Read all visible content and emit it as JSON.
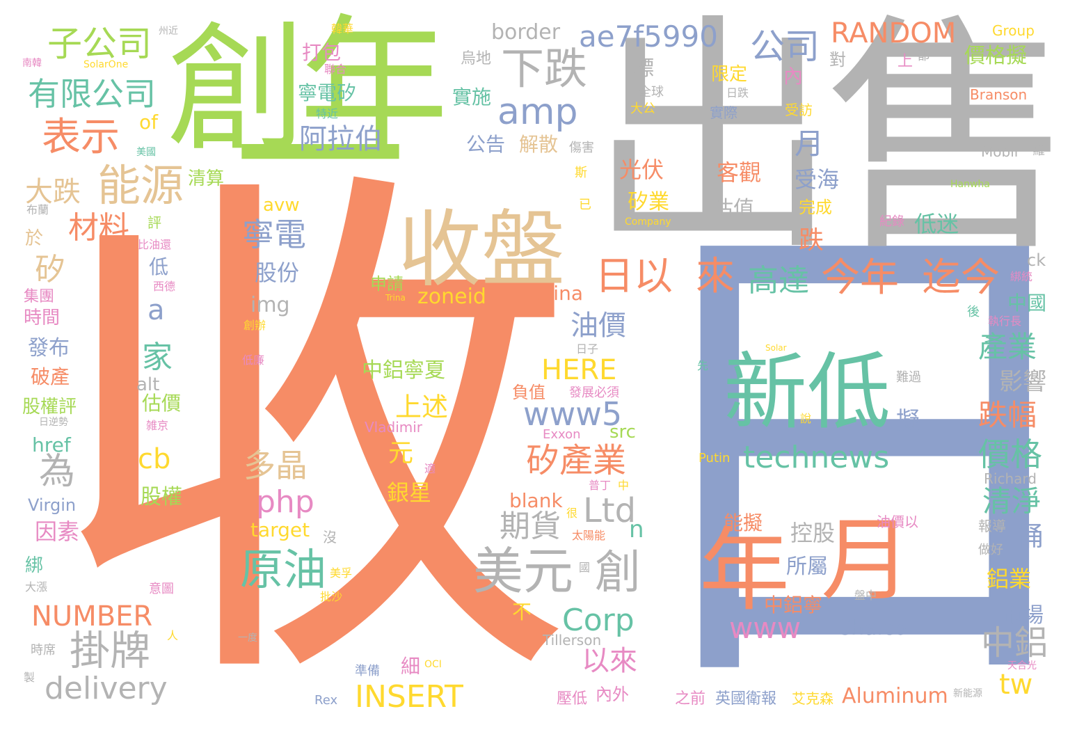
{
  "palette": {
    "orange": "#f68c66",
    "green": "#a6d955",
    "gray": "#b3b3b3",
    "blue": "#8da0cb",
    "teal": "#66c2a5",
    "tan": "#e5c494",
    "pink": "#e78ac3",
    "yellow": "#ffd92f"
  },
  "words": [
    {
      "text": "收",
      "color": "orange"
    },
    {
      "text": "日",
      "color": "blue"
    },
    {
      "text": "出售",
      "color": "gray"
    },
    {
      "text": "創",
      "color": "green"
    },
    {
      "text": "年",
      "color": "green"
    },
    {
      "text": "一",
      "color": "green"
    },
    {
      "text": "收盤",
      "color": "tan"
    },
    {
      "text": "新低",
      "color": "teal"
    },
    {
      "text": "年",
      "color": "orange"
    },
    {
      "text": "月",
      "color": "orange"
    },
    {
      "text": "下跌",
      "color": "gray"
    },
    {
      "text": "ae7f5990",
      "color": "blue"
    },
    {
      "text": "公司",
      "color": "blue"
    },
    {
      "text": "RANDOM",
      "color": "orange"
    },
    {
      "text": "子公司",
      "color": "green"
    },
    {
      "text": "有限公司",
      "color": "teal"
    },
    {
      "text": "表示",
      "color": "orange"
    },
    {
      "text": "amp",
      "color": "blue"
    },
    {
      "text": "能源",
      "color": "tan"
    },
    {
      "text": "阿拉伯",
      "color": "blue"
    },
    {
      "text": "日以",
      "color": "orange"
    },
    {
      "text": "來",
      "color": "orange"
    },
    {
      "text": "高達",
      "color": "teal"
    },
    {
      "text": "今年",
      "color": "orange"
    },
    {
      "text": "迄今",
      "color": "orange"
    },
    {
      "text": "原油",
      "color": "teal"
    },
    {
      "text": "美元",
      "color": "gray"
    },
    {
      "text": "創",
      "color": "gray"
    },
    {
      "text": "technews",
      "color": "teal"
    },
    {
      "text": "掛牌",
      "color": "gray"
    },
    {
      "text": "NUMBER",
      "color": "orange"
    },
    {
      "text": "delivery",
      "color": "gray"
    },
    {
      "text": "INSERT",
      "color": "yellow"
    },
    {
      "text": "Corp",
      "color": "teal"
    },
    {
      "text": "www",
      "color": "pink"
    },
    {
      "text": "Chalco",
      "color": "blue"
    },
    {
      "text": "Aluminum",
      "color": "orange"
    },
    {
      "text": "www5",
      "color": "blue"
    },
    {
      "text": "HERE",
      "color": "yellow"
    },
    {
      "text": "php",
      "color": "pink"
    },
    {
      "text": "Ltd",
      "color": "gray"
    },
    {
      "text": "寧電",
      "color": "blue"
    },
    {
      "text": "矽產業",
      "color": "orange"
    },
    {
      "text": "多晶",
      "color": "tan"
    },
    {
      "text": "上述",
      "color": "yellow"
    },
    {
      "text": "中鋁寧夏",
      "color": "green"
    },
    {
      "text": "zoneid",
      "color": "yellow"
    },
    {
      "text": "China",
      "color": "orange"
    },
    {
      "text": "以來",
      "color": "pink"
    },
    {
      "text": "期貨",
      "color": "gray"
    },
    {
      "text": "中鋁",
      "color": "gray"
    },
    {
      "text": "價格",
      "color": "teal"
    },
    {
      "text": "跌幅",
      "color": "orange"
    },
    {
      "text": "產業",
      "color": "teal"
    },
    {
      "text": "清淨",
      "color": "teal"
    },
    {
      "text": "tw",
      "color": "yellow"
    },
    {
      "text": "油價",
      "color": "blue"
    },
    {
      "text": "家",
      "color": "teal"
    },
    {
      "text": "為",
      "color": "gray"
    },
    {
      "text": "cb",
      "color": "yellow"
    },
    {
      "text": "a",
      "color": "blue"
    },
    {
      "text": "矽",
      "color": "tan"
    },
    {
      "text": "大跌",
      "color": "tan"
    },
    {
      "text": "材料",
      "color": "orange"
    },
    {
      "text": "border",
      "color": "gray"
    },
    {
      "text": "月",
      "color": "blue"
    },
    {
      "text": "光伏",
      "color": "orange"
    },
    {
      "text": "客觀",
      "color": "orange"
    },
    {
      "text": "受海",
      "color": "blue"
    },
    {
      "text": "矽業",
      "color": "yellow"
    },
    {
      "text": "估值",
      "color": "gray"
    },
    {
      "text": "跌",
      "color": "orange"
    },
    {
      "text": "低迷",
      "color": "teal"
    },
    {
      "text": "價格擬",
      "color": "green"
    },
    {
      "text": "股份",
      "color": "blue"
    },
    {
      "text": "img",
      "color": "gray"
    },
    {
      "text": "元",
      "color": "yellow"
    },
    {
      "text": "銀星",
      "color": "yellow"
    },
    {
      "text": "blank",
      "color": "orange"
    },
    {
      "text": "target",
      "color": "yellow"
    },
    {
      "text": "src",
      "color": "green"
    },
    {
      "text": "控股",
      "color": "gray"
    },
    {
      "text": "所屬",
      "color": "blue"
    },
    {
      "text": "能擬",
      "color": "orange"
    },
    {
      "text": "中鋁寧",
      "color": "orange"
    },
    {
      "text": "桶",
      "color": "blue"
    },
    {
      "text": "鋁業",
      "color": "yellow"
    },
    {
      "text": "市場",
      "color": "blue"
    },
    {
      "text": "影響",
      "color": "gray"
    },
    {
      "text": "擬",
      "color": "blue"
    },
    {
      "text": "中國",
      "color": "teal"
    },
    {
      "text": "限定",
      "color": "yellow"
    },
    {
      "text": "內",
      "color": "pink"
    },
    {
      "text": "打包",
      "color": "pink"
    },
    {
      "text": "寧電矽",
      "color": "teal"
    },
    {
      "text": "實施",
      "color": "teal"
    },
    {
      "text": "公告",
      "color": "blue"
    },
    {
      "text": "解散",
      "color": "tan"
    },
    {
      "text": "of",
      "color": "yellow"
    },
    {
      "text": "avw",
      "color": "yellow"
    },
    {
      "text": "n",
      "color": "teal"
    },
    {
      "text": "申請",
      "color": "green"
    },
    {
      "text": "alt",
      "color": "gray"
    },
    {
      "text": "href",
      "color": "teal"
    },
    {
      "text": "估價",
      "color": "green"
    },
    {
      "text": "股權",
      "color": "green"
    },
    {
      "text": "Virgin",
      "color": "blue"
    },
    {
      "text": "因素",
      "color": "pink"
    },
    {
      "text": "發布",
      "color": "blue"
    },
    {
      "text": "破產",
      "color": "orange"
    },
    {
      "text": "股權評",
      "color": "green"
    },
    {
      "text": "時間",
      "color": "pink"
    },
    {
      "text": "集團",
      "color": "pink"
    },
    {
      "text": "低",
      "color": "blue"
    },
    {
      "text": "於",
      "color": "tan"
    },
    {
      "text": "清算",
      "color": "green"
    },
    {
      "text": "Group",
      "color": "yellow"
    },
    {
      "text": "Branson",
      "color": "orange"
    },
    {
      "text": "Mobil",
      "color": "gray"
    },
    {
      "text": "Richard",
      "color": "gray"
    },
    {
      "text": "ck",
      "color": "gray"
    },
    {
      "text": "Putin",
      "color": "yellow"
    },
    {
      "text": "Vladimir",
      "color": "pink"
    },
    {
      "text": "Exxon",
      "color": "pink"
    },
    {
      "text": "Tillerson",
      "color": "gray"
    },
    {
      "text": "Rex",
      "color": "blue"
    },
    {
      "text": "Hanwha",
      "color": "green"
    },
    {
      "text": "Company",
      "color": "yellow"
    },
    {
      "text": "Solar",
      "color": "yellow"
    },
    {
      "text": "SolarOne",
      "color": "yellow"
    },
    {
      "text": "OCI",
      "color": "yellow"
    },
    {
      "text": "Trina",
      "color": "yellow"
    },
    {
      "text": "負值",
      "color": "orange"
    },
    {
      "text": "發展必須",
      "color": "pink"
    },
    {
      "text": "太陽能",
      "color": "orange"
    },
    {
      "text": "壓低",
      "color": "pink"
    },
    {
      "text": "內外",
      "color": "pink"
    },
    {
      "text": "之前",
      "color": "pink"
    },
    {
      "text": "英國衛報",
      "color": "blue"
    },
    {
      "text": "艾克森",
      "color": "yellow"
    },
    {
      "text": "新能源",
      "color": "gray"
    },
    {
      "text": "天合光",
      "color": "pink"
    },
    {
      "text": "不",
      "color": "yellow"
    },
    {
      "text": "細",
      "color": "pink"
    },
    {
      "text": "準備",
      "color": "blue"
    },
    {
      "text": "油價以",
      "color": "pink"
    },
    {
      "text": "盤中",
      "color": "gray"
    },
    {
      "text": "報導",
      "color": "gray"
    },
    {
      "text": "做好",
      "color": "gray"
    },
    {
      "text": "執行長",
      "color": "pink"
    },
    {
      "text": "後",
      "color": "teal"
    },
    {
      "text": "難過",
      "color": "gray"
    },
    {
      "text": "說",
      "color": "yellow"
    },
    {
      "text": "先",
      "color": "teal"
    },
    {
      "text": "全球",
      "color": "gray"
    },
    {
      "text": "大公",
      "color": "yellow"
    },
    {
      "text": "實際",
      "color": "blue"
    },
    {
      "text": "日跌",
      "color": "gray"
    },
    {
      "text": "受訪",
      "color": "yellow"
    },
    {
      "text": "完成",
      "color": "yellow"
    },
    {
      "text": "紀錄",
      "color": "pink"
    },
    {
      "text": "標",
      "color": "gray"
    },
    {
      "text": "烏地",
      "color": "gray"
    },
    {
      "text": "對",
      "color": "gray"
    },
    {
      "text": "上",
      "color": "pink"
    },
    {
      "text": "都",
      "color": "gray"
    },
    {
      "text": "羅",
      "color": "gray"
    },
    {
      "text": "斯",
      "color": "yellow"
    },
    {
      "text": "已",
      "color": "yellow"
    },
    {
      "text": "傷害",
      "color": "gray"
    },
    {
      "text": "韓華",
      "color": "yellow"
    },
    {
      "text": "聯合",
      "color": "pink"
    },
    {
      "text": "特近",
      "color": "teal"
    },
    {
      "text": "州近",
      "color": "gray"
    },
    {
      "text": "南韓",
      "color": "pink"
    },
    {
      "text": "美國",
      "color": "teal"
    },
    {
      "text": "布蘭",
      "color": "gray"
    },
    {
      "text": "評",
      "color": "green"
    },
    {
      "text": "比油還",
      "color": "pink"
    },
    {
      "text": "西德",
      "color": "pink"
    },
    {
      "text": "創辦",
      "color": "yellow"
    },
    {
      "text": "低廉",
      "color": "pink"
    },
    {
      "text": "日逆勢",
      "color": "gray"
    },
    {
      "text": "雑京",
      "color": "pink"
    },
    {
      "text": "沒",
      "color": "gray"
    },
    {
      "text": "美孚",
      "color": "yellow"
    },
    {
      "text": "批沙",
      "color": "yellow"
    },
    {
      "text": "意圖",
      "color": "pink"
    },
    {
      "text": "人",
      "color": "yellow"
    },
    {
      "text": "一度",
      "color": "gray"
    },
    {
      "text": "大漲",
      "color": "gray"
    },
    {
      "text": "綁",
      "color": "teal"
    },
    {
      "text": "時席",
      "color": "gray"
    },
    {
      "text": "普丁",
      "color": "pink"
    },
    {
      "text": "中",
      "color": "yellow"
    },
    {
      "text": "很",
      "color": "yellow"
    },
    {
      "text": "國",
      "color": "gray"
    },
    {
      "text": "日子",
      "color": "gray"
    },
    {
      "text": "適",
      "color": "pink"
    },
    {
      "text": "製",
      "color": "gray"
    },
    {
      "text": "綁統",
      "color": "pink"
    }
  ]
}
